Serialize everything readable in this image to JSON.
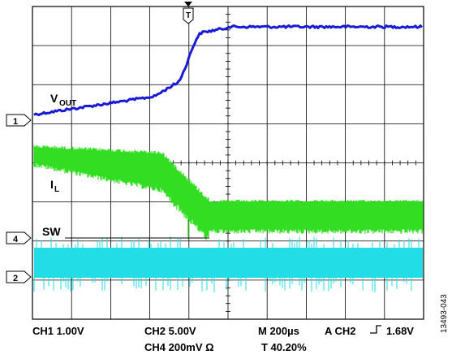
{
  "trace_labels": {
    "vout_main": "V",
    "vout_sub": "OUT",
    "il_main": "I",
    "il_sub": "L",
    "sw": "SW"
  },
  "channel_markers": {
    "ch1": "1",
    "ch4": "4",
    "ch2": "2"
  },
  "trigger_marker": "T",
  "settings": {
    "ch1": "CH1 1.00V",
    "ch2": "CH2 5.00V",
    "ch4": "CH4 200mV Ω",
    "timebase": "M 200µs",
    "trigger_prefix": "A CH2",
    "trigger_level": "1.68V",
    "trigger_position": "T 40.20%"
  },
  "figure_id": "13493-043",
  "colors": {
    "vout": "#1a1ad6",
    "il": "#33dd22",
    "sw": "#22dde6",
    "grid": "#000000"
  }
}
